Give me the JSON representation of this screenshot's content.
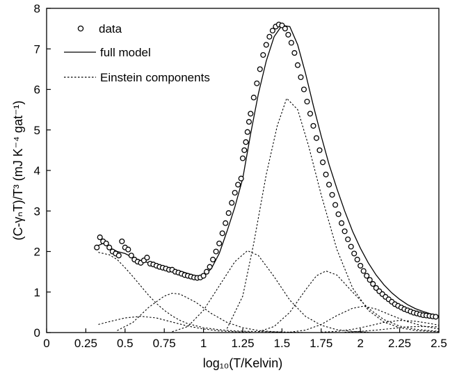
{
  "chart_data": {
    "type": "scatter",
    "xlabel": "log₁₀(T/Kelvin)",
    "ylabel": "(C-γₙT)/T³  (mJ K⁻⁴ gat⁻¹)",
    "xlim": [
      0,
      2.5
    ],
    "ylim": [
      0,
      8
    ],
    "x_ticks": [
      "0",
      "0.25",
      "0.5",
      "0.75",
      "1",
      "1.25",
      "1.5",
      "1.75",
      "2",
      "2.25",
      "2.5"
    ],
    "y_ticks": [
      "0",
      "1",
      "2",
      "3",
      "4",
      "5",
      "6",
      "7",
      "8"
    ],
    "grid": false,
    "legend_position": "top-left",
    "legend": [
      "data",
      "full model",
      "Einstein components"
    ],
    "series": [
      {
        "name": "data",
        "style": "open-circle",
        "x": [
          0.32,
          0.34,
          0.36,
          0.38,
          0.4,
          0.42,
          0.44,
          0.46,
          0.48,
          0.5,
          0.52,
          0.54,
          0.56,
          0.58,
          0.6,
          0.62,
          0.64,
          0.66,
          0.68,
          0.7,
          0.72,
          0.74,
          0.76,
          0.78,
          0.8,
          0.82,
          0.84,
          0.86,
          0.88,
          0.9,
          0.92,
          0.94,
          0.96,
          0.98,
          1.0,
          1.02,
          1.04,
          1.06,
          1.08,
          1.1,
          1.12,
          1.14,
          1.16,
          1.18,
          1.2,
          1.22,
          1.24,
          1.25,
          1.26,
          1.27,
          1.28,
          1.29,
          1.3,
          1.32,
          1.34,
          1.36,
          1.38,
          1.4,
          1.42,
          1.44,
          1.46,
          1.48,
          1.5,
          1.52,
          1.54,
          1.56,
          1.58,
          1.6,
          1.62,
          1.64,
          1.66,
          1.68,
          1.7,
          1.72,
          1.74,
          1.76,
          1.78,
          1.8,
          1.82,
          1.84,
          1.86,
          1.88,
          1.9,
          1.92,
          1.94,
          1.96,
          1.98,
          2.0,
          2.02,
          2.04,
          2.06,
          2.08,
          2.1,
          2.12,
          2.14,
          2.16,
          2.18,
          2.2,
          2.22,
          2.24,
          2.26,
          2.28,
          2.3,
          2.32,
          2.34,
          2.36,
          2.38,
          2.4,
          2.42,
          2.44,
          2.46,
          2.48
        ],
        "y": [
          2.1,
          2.35,
          2.25,
          2.2,
          2.1,
          2.0,
          1.95,
          1.9,
          2.25,
          2.1,
          2.05,
          1.9,
          1.8,
          1.75,
          1.72,
          1.78,
          1.85,
          1.7,
          1.68,
          1.65,
          1.62,
          1.6,
          1.58,
          1.55,
          1.55,
          1.5,
          1.48,
          1.45,
          1.42,
          1.4,
          1.38,
          1.36,
          1.35,
          1.36,
          1.4,
          1.5,
          1.62,
          1.8,
          2.0,
          2.2,
          2.45,
          2.7,
          2.95,
          3.2,
          3.45,
          3.65,
          3.8,
          4.3,
          4.5,
          4.7,
          4.95,
          5.2,
          5.4,
          5.8,
          6.15,
          6.5,
          6.85,
          7.1,
          7.3,
          7.45,
          7.55,
          7.6,
          7.58,
          7.5,
          7.35,
          7.15,
          6.9,
          6.6,
          6.3,
          6.0,
          5.7,
          5.4,
          5.1,
          4.8,
          4.5,
          4.2,
          3.9,
          3.65,
          3.4,
          3.15,
          2.92,
          2.7,
          2.5,
          2.3,
          2.12,
          1.95,
          1.8,
          1.65,
          1.52,
          1.4,
          1.3,
          1.2,
          1.1,
          1.02,
          0.95,
          0.88,
          0.82,
          0.76,
          0.7,
          0.66,
          0.62,
          0.58,
          0.55,
          0.52,
          0.49,
          0.47,
          0.45,
          0.43,
          0.42,
          0.41,
          0.4,
          0.39
        ]
      },
      {
        "name": "full model",
        "style": "solid-line",
        "x": [
          0.33,
          0.36,
          0.4,
          0.45,
          0.5,
          0.55,
          0.6,
          0.65,
          0.7,
          0.75,
          0.8,
          0.85,
          0.9,
          0.95,
          1.0,
          1.05,
          1.1,
          1.15,
          1.2,
          1.25,
          1.3,
          1.35,
          1.4,
          1.45,
          1.5,
          1.55,
          1.6,
          1.65,
          1.7,
          1.75,
          1.8,
          1.85,
          1.9,
          1.95,
          2.0,
          2.05,
          2.1,
          2.15,
          2.2,
          2.25,
          2.3,
          2.35,
          2.4,
          2.45,
          2.5
        ],
        "y": [
          2.15,
          2.2,
          2.1,
          2.0,
          1.95,
          1.85,
          1.78,
          1.72,
          1.68,
          1.62,
          1.57,
          1.52,
          1.46,
          1.4,
          1.38,
          1.58,
          1.95,
          2.5,
          3.1,
          3.8,
          4.9,
          5.9,
          6.7,
          7.3,
          7.58,
          7.55,
          7.1,
          6.4,
          5.6,
          4.85,
          4.15,
          3.55,
          3.0,
          2.5,
          2.08,
          1.72,
          1.42,
          1.18,
          0.98,
          0.82,
          0.69,
          0.59,
          0.52,
          0.46,
          0.41
        ]
      },
      {
        "name": "Einstein components",
        "style": "dotted-line",
        "components": [
          {
            "x": [
              0.33,
              0.4,
              0.45,
              0.5,
              0.55,
              0.6,
              0.65,
              0.7,
              0.75,
              0.8,
              0.85,
              0.9,
              1.0,
              1.1,
              1.2,
              1.3,
              1.4,
              1.5
            ],
            "y": [
              1.98,
              1.92,
              1.8,
              1.6,
              1.38,
              1.15,
              0.92,
              0.72,
              0.55,
              0.41,
              0.3,
              0.22,
              0.12,
              0.07,
              0.04,
              0.03,
              0.02,
              0.01
            ]
          },
          {
            "x": [
              0.33,
              0.4,
              0.5,
              0.6,
              0.7,
              0.8,
              0.9,
              1.0,
              1.1,
              1.2,
              1.3
            ],
            "y": [
              0.2,
              0.27,
              0.36,
              0.4,
              0.36,
              0.26,
              0.16,
              0.09,
              0.04,
              0.02,
              0.01
            ]
          },
          {
            "x": [
              0.45,
              0.55,
              0.65,
              0.75,
              0.8,
              0.85,
              0.95,
              1.05,
              1.15,
              1.25,
              1.35,
              1.45,
              1.55,
              1.65
            ],
            "y": [
              0.05,
              0.25,
              0.62,
              0.9,
              0.97,
              0.95,
              0.75,
              0.47,
              0.25,
              0.12,
              0.05,
              0.02,
              0.01,
              0.0
            ]
          },
          {
            "x": [
              0.8,
              0.9,
              1.0,
              1.1,
              1.2,
              1.28,
              1.35,
              1.45,
              1.55,
              1.65,
              1.75,
              1.85,
              1.95,
              2.05
            ],
            "y": [
              0.02,
              0.15,
              0.55,
              1.15,
              1.75,
              2.02,
              1.9,
              1.38,
              0.8,
              0.4,
              0.18,
              0.07,
              0.03,
              0.01
            ]
          },
          {
            "x": [
              1.15,
              1.25,
              1.32,
              1.4,
              1.47,
              1.53,
              1.6,
              1.67,
              1.75,
              1.85,
              1.95,
              2.05,
              2.15,
              2.25,
              2.35,
              2.5
            ],
            "y": [
              0.1,
              0.9,
              2.2,
              3.9,
              5.1,
              5.78,
              5.5,
              4.6,
              3.4,
              2.05,
              1.1,
              0.55,
              0.26,
              0.12,
              0.05,
              0.02
            ]
          },
          {
            "x": [
              1.35,
              1.45,
              1.55,
              1.65,
              1.72,
              1.78,
              1.85,
              1.95,
              2.05,
              2.15,
              2.25,
              2.35,
              2.5
            ],
            "y": [
              0.02,
              0.15,
              0.5,
              1.05,
              1.4,
              1.52,
              1.42,
              1.0,
              0.6,
              0.32,
              0.16,
              0.08,
              0.03
            ]
          },
          {
            "x": [
              1.55,
              1.65,
              1.75,
              1.85,
              1.95,
              2.02,
              2.1,
              2.2,
              2.3,
              2.4,
              2.5
            ],
            "y": [
              0.01,
              0.06,
              0.2,
              0.42,
              0.6,
              0.65,
              0.58,
              0.42,
              0.27,
              0.16,
              0.09
            ]
          },
          {
            "x": [
              1.75,
              1.85,
              1.95,
              2.05,
              2.15,
              2.25,
              2.35,
              2.45,
              2.5
            ],
            "y": [
              0.01,
              0.03,
              0.08,
              0.16,
              0.25,
              0.3,
              0.28,
              0.22,
              0.18
            ]
          },
          {
            "x": [
              1.9,
              2.0,
              2.1,
              2.2,
              2.3,
              2.4,
              2.5
            ],
            "y": [
              0.01,
              0.03,
              0.06,
              0.1,
              0.14,
              0.15,
              0.14
            ]
          }
        ]
      }
    ]
  }
}
